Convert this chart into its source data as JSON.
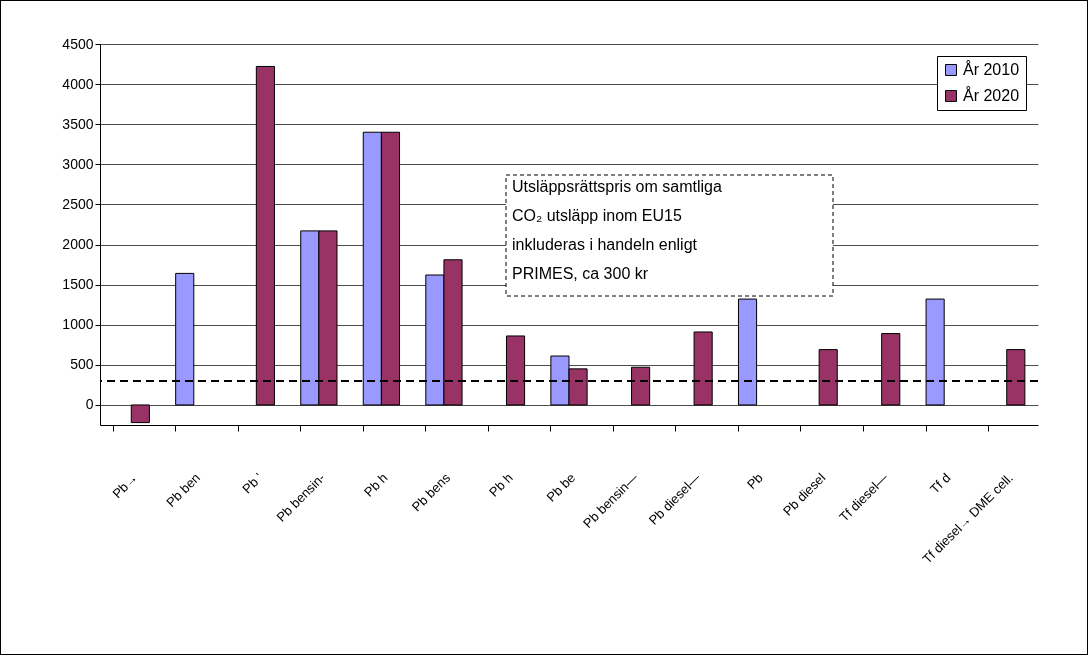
{
  "chart_data": {
    "type": "bar",
    "categories": [
      "Pb→",
      "Pb ben",
      "Pb '",
      "Pb bensin-",
      "Pb h",
      "Pb bens",
      "Pb h",
      "Pb be",
      "Pb bensin—",
      "Pb diesel—",
      "Pb",
      "Pb diesel",
      "Tf diesel—",
      "Tf d",
      "Tf diesel→ DME cell."
    ],
    "series": [
      {
        "name": "År 2010",
        "color": "#9999ff",
        "values": [
          null,
          1640,
          null,
          2170,
          3400,
          1620,
          null,
          610,
          null,
          null,
          1320,
          null,
          null,
          1320,
          null
        ]
      },
      {
        "name": "År 2020",
        "color": "#993366",
        "values": [
          -220,
          null,
          4220,
          2170,
          3400,
          1810,
          860,
          450,
          470,
          910,
          null,
          690,
          890,
          null,
          690
        ]
      }
    ],
    "ylim": [
      -250,
      4500
    ],
    "yticks": [
      0,
      500,
      1000,
      1500,
      2000,
      2500,
      3000,
      3500,
      4000,
      4500
    ],
    "grid": "y",
    "legend": "top right",
    "ref_lines": [
      {
        "axis": "y",
        "value": 300,
        "line_style": "dashed"
      }
    ],
    "annotations": [
      "Utsläppsrättspris om samtliga CO₂ utsläpp inom EU15 inkluderas i handeln enligt PRIMES, ca 300 kr"
    ]
  }
}
